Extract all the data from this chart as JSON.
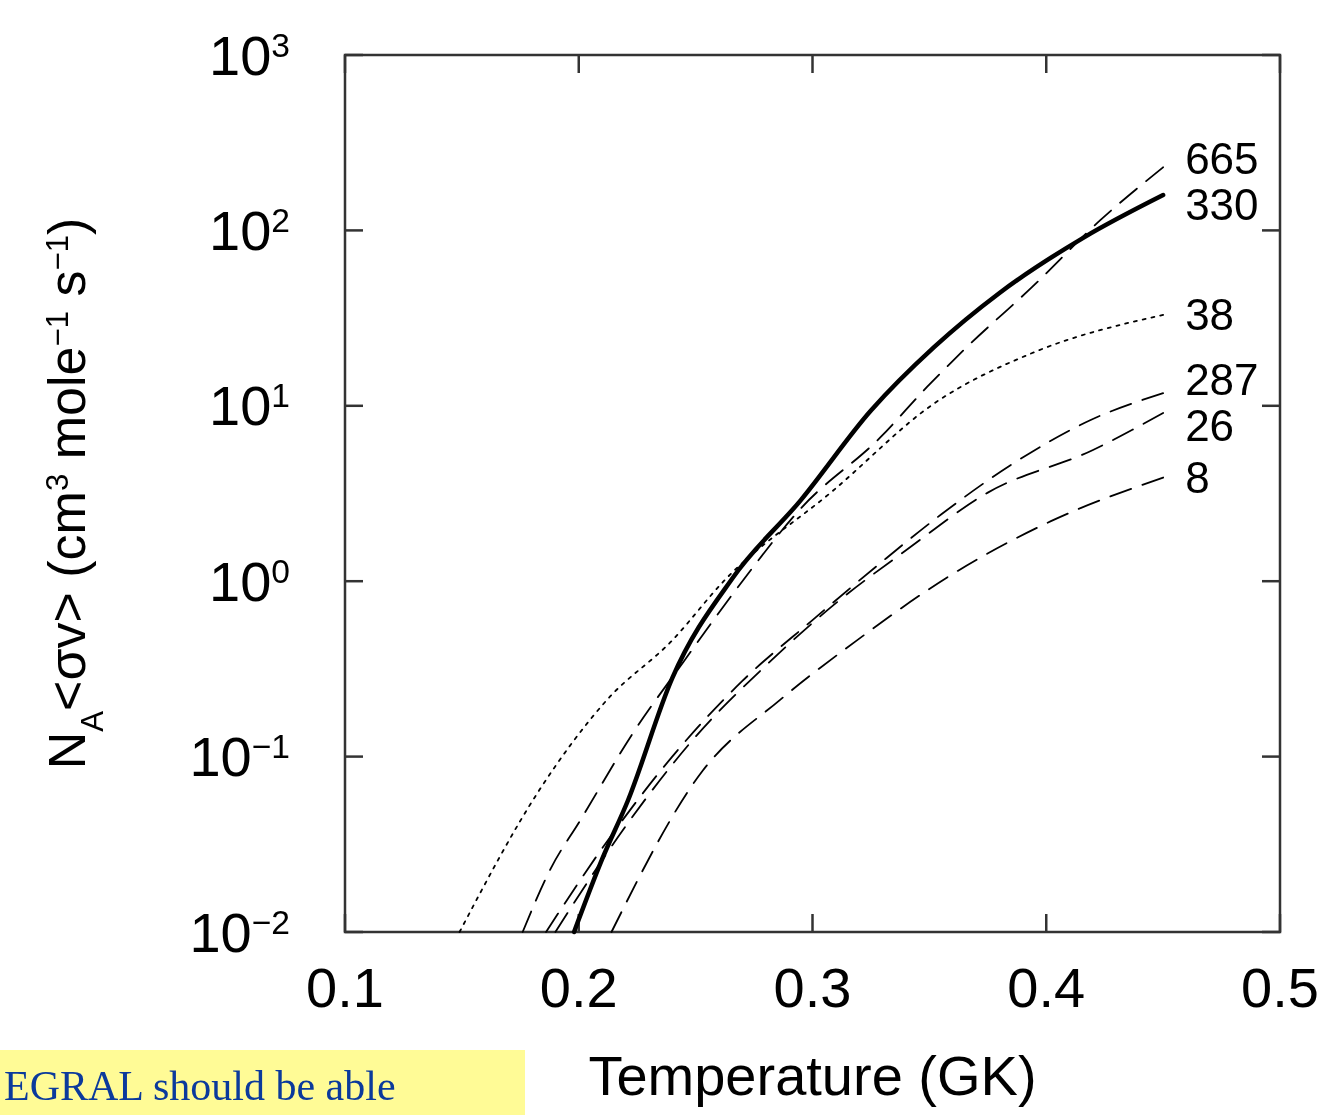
{
  "chart_data": {
    "type": "line",
    "xlabel": "Temperature (GK)",
    "ylabel": "N$_{A}$<σv> (cm$^{3}$ mole$^{−1}$ s$^{−1}$)",
    "log": "y",
    "xlim": [
      0.1,
      0.5
    ],
    "xticks": [
      0.1,
      0.2,
      0.3,
      0.4,
      0.5
    ],
    "ylim": [
      0.01,
      1000
    ],
    "yticks": [
      {
        "value": 0.01,
        "label": "10$^{−2}$"
      },
      {
        "value": 0.1,
        "label": "10$^{−1}$"
      },
      {
        "value": 1,
        "label": "10$^{0}$"
      },
      {
        "value": 10,
        "label": "10$^{1}$"
      },
      {
        "value": 100,
        "label": "10$^{2}$"
      },
      {
        "value": 1000,
        "label": "10$^{3}$"
      }
    ],
    "grid": false,
    "legend": false,
    "marker": "none",
    "annotations": [
      "EGRAL should be able"
    ],
    "series": [
      {
        "name": "665",
        "color": "#000000",
        "line_style": "dashed",
        "x": [
          0.176,
          0.188,
          0.2005,
          0.223,
          0.245,
          0.27,
          0.295,
          0.329,
          0.349,
          0.366,
          0.394,
          0.423,
          0.45
        ],
        "values": [
          0.01,
          0.023,
          0.043,
          0.135,
          0.35,
          1.0,
          2.6,
          6.6,
          12.8,
          21.6,
          47.6,
          114,
          229
        ]
      },
      {
        "name": "330",
        "color": "#000000",
        "line_style": "solid",
        "x": [
          0.198,
          0.21,
          0.221,
          0.24,
          0.266,
          0.295,
          0.325,
          0.352,
          0.38,
          0.416,
          0.45
        ],
        "values": [
          0.01,
          0.026,
          0.056,
          0.28,
          1.05,
          2.9,
          9.4,
          21.6,
          44,
          91,
          159
        ]
      },
      {
        "name": "38",
        "color": "#000000",
        "line_style": "dotted",
        "x": [
          0.149,
          0.183,
          0.212,
          0.24,
          0.262,
          0.309,
          0.352,
          0.394,
          0.45
        ],
        "values": [
          0.01,
          0.064,
          0.21,
          0.46,
          1.0,
          3.3,
          10.3,
          20,
          33
        ]
      },
      {
        "name": "287",
        "color": "#000000",
        "line_style": "dashed",
        "x": [
          0.186,
          0.21,
          0.24,
          0.27,
          0.3,
          0.33,
          0.355,
          0.386,
          0.419,
          0.45
        ],
        "values": [
          0.01,
          0.03,
          0.1,
          0.27,
          0.6,
          1.3,
          2.4,
          4.7,
          8.3,
          11.8
        ]
      },
      {
        "name": "26",
        "color": "#000000",
        "line_style": "dashed",
        "x": [
          0.19,
          0.22,
          0.25,
          0.28,
          0.31,
          0.34,
          0.375,
          0.42,
          0.45
        ],
        "values": [
          0.01,
          0.04,
          0.13,
          0.33,
          0.75,
          1.5,
          3.2,
          5.6,
          9.1
        ]
      },
      {
        "name": "8",
        "color": "#000000",
        "line_style": "dashed",
        "x": [
          0.214,
          0.253,
          0.286,
          0.319,
          0.36,
          0.402,
          0.45
        ],
        "values": [
          0.01,
          0.083,
          0.21,
          0.46,
          1.1,
          2.2,
          3.9
        ]
      }
    ]
  }
}
